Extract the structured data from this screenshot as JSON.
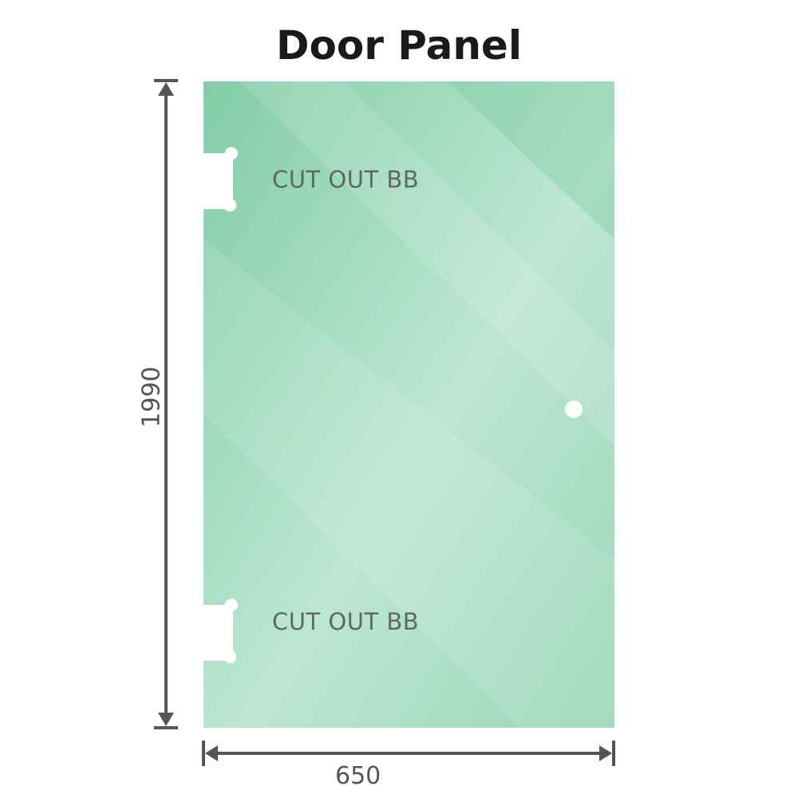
{
  "title": "Door Panel",
  "labels": {
    "cutout_top": "CUT OUT BB",
    "cutout_bottom": "CUT OUT BB"
  },
  "dimensions": {
    "width": "650",
    "height": "1990"
  },
  "colors": {
    "glass": "#86cfa9",
    "glass_light": "#bde6d2",
    "dimension_line": "#555555"
  }
}
